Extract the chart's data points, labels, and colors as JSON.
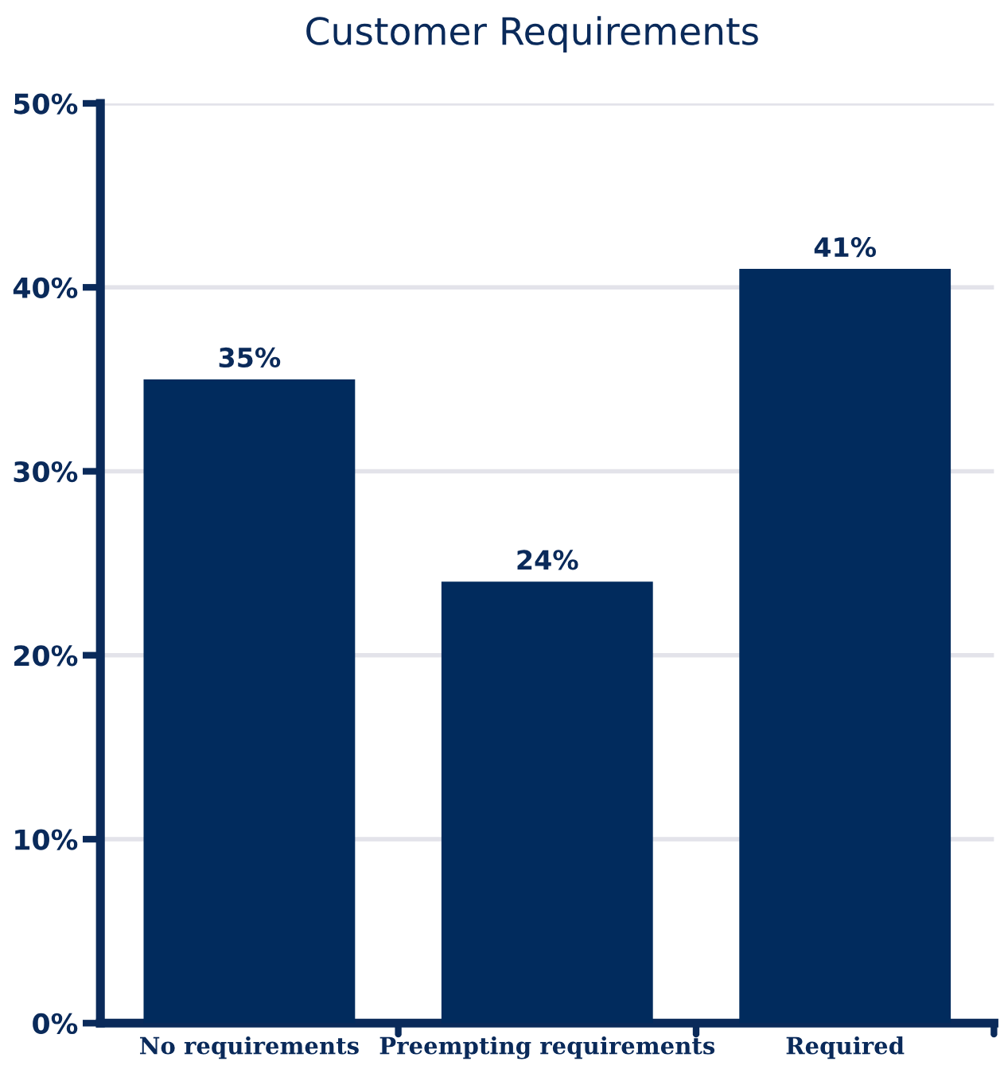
{
  "chart_data": {
    "type": "bar",
    "title": "Customer Requirements",
    "categories": [
      "No requirements",
      "Preempting requirements",
      "Required"
    ],
    "values": [
      35,
      24,
      41
    ],
    "color": "#012b5d",
    "value_labels": [
      "35%",
      "24%",
      "41%"
    ],
    "ylim": [
      0,
      50
    ],
    "yticks": [
      {
        "value": 0,
        "label": "0%"
      },
      {
        "value": 10,
        "label": "10%"
      },
      {
        "value": 20,
        "label": "20%"
      },
      {
        "value": 30,
        "label": "30%"
      },
      {
        "value": 40,
        "label": "40%"
      },
      {
        "value": 50,
        "label": "50%"
      }
    ],
    "grid": "y",
    "legend": false
  }
}
